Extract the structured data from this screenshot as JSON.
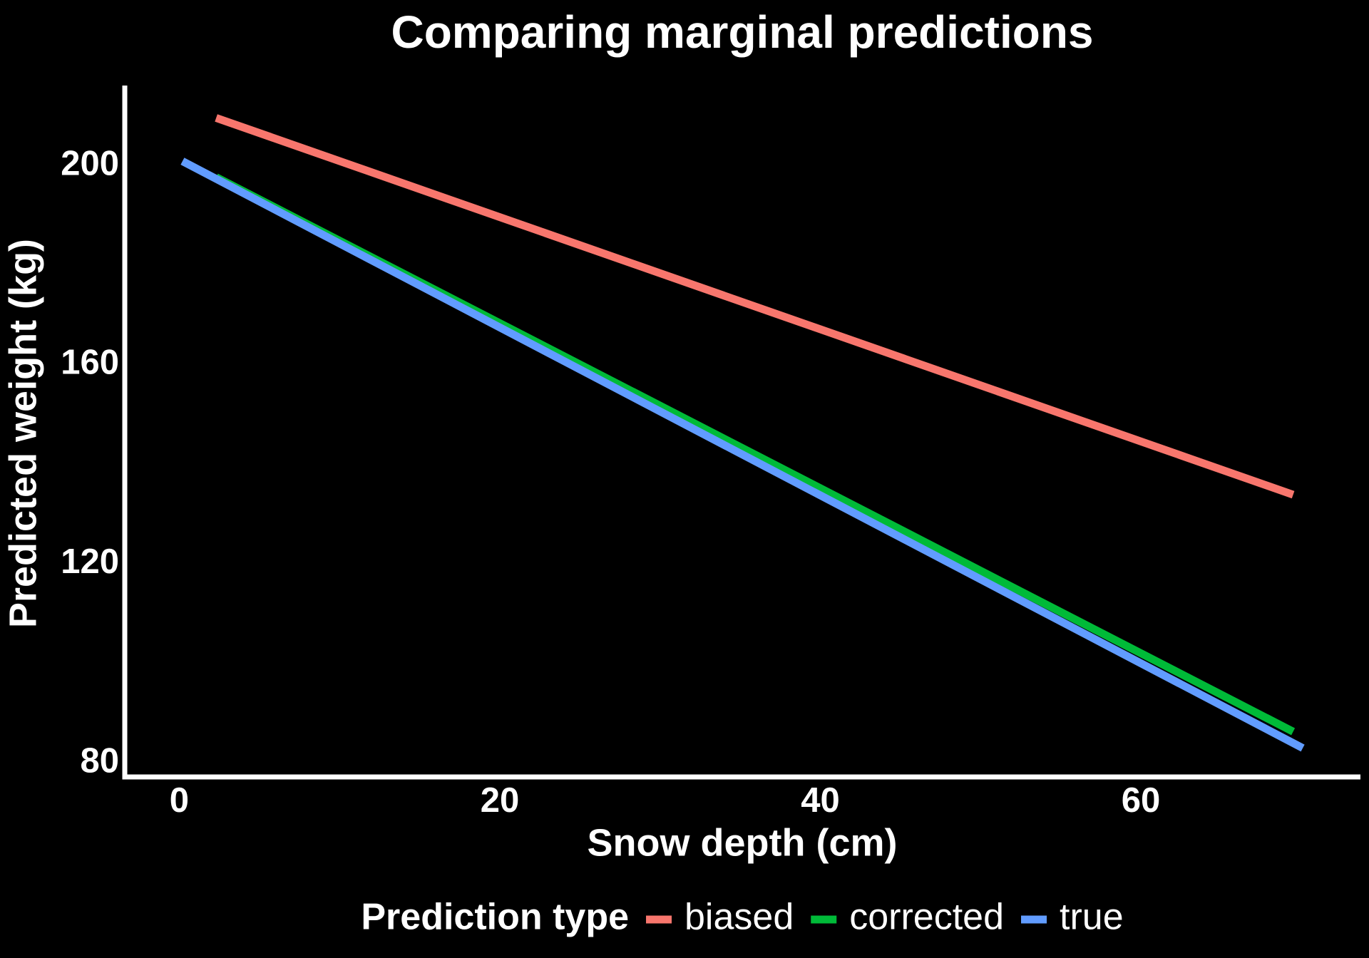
{
  "chart_data": {
    "type": "line",
    "title": "Comparing marginal predictions",
    "x_label": "Snow depth (cm)",
    "y_label": "Predicted weight (kg)",
    "legend_title": "Prediction type",
    "legend_position": "bottom",
    "series": [
      {
        "name": "biased",
        "color": "#f8766d",
        "x": [
          2.3,
          69.5
        ],
        "values": [
          209.6,
          133.9
        ]
      },
      {
        "name": "corrected",
        "color": "#00ba38",
        "x": [
          2.3,
          69.5
        ],
        "values": [
          197.7,
          86.3
        ]
      },
      {
        "name": "true",
        "color": "#619cff",
        "x": [
          0.2,
          70.1
        ],
        "values": [
          200.9,
          83.0
        ]
      }
    ],
    "xlim": [
      -3.4,
      73.7
    ],
    "ylim": [
      77.2,
      216.1
    ],
    "xticks": [
      0,
      20,
      40,
      60
    ],
    "yticks": [
      80,
      120,
      160,
      200
    ],
    "grid": false
  }
}
